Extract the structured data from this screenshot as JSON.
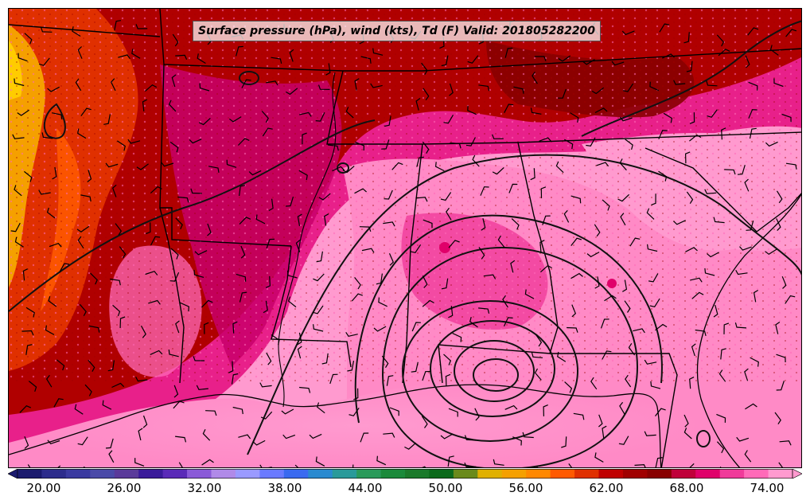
{
  "title": "Surface pressure (hPa), wind (kts), Td (F) Valid: 201805282200",
  "colorbar": {
    "tick_labels": [
      "20.00",
      "26.00",
      "32.00",
      "38.00",
      "44.00",
      "50.00",
      "56.00",
      "62.00",
      "68.00",
      "74.00"
    ],
    "colors": [
      "#1a1a6e",
      "#2c2c8c",
      "#3a3aa0",
      "#4a4aa8",
      "#5a3a9a",
      "#3a1a9a",
      "#5a2ab8",
      "#8a5ad8",
      "#b08ae8",
      "#9a9aff",
      "#6a7aff",
      "#3a6af0",
      "#2a8ad0",
      "#2a9a9a",
      "#2a9a5a",
      "#1a8a3a",
      "#1a7a2a",
      "#0a6a1a",
      "#6a8a1a",
      "#e0b000",
      "#f5a000",
      "#ff8800",
      "#ff5a00",
      "#e03000",
      "#c00000",
      "#a00000",
      "#880000",
      "#c0003a",
      "#e0006a",
      "#f03a9a",
      "#ff6ab8",
      "#ff9acf"
    ],
    "units": "F"
  },
  "map": {
    "region": "southeastern United States",
    "field_colors": {
      "very_dry": "#f5a000",
      "dry": "#e03000",
      "mid": "#b00000",
      "moist": "#c8006a",
      "very_moist": "#e8208a",
      "saturated": "#ff9acf"
    },
    "feature": "low pressure center near Florida panhandle coast"
  }
}
